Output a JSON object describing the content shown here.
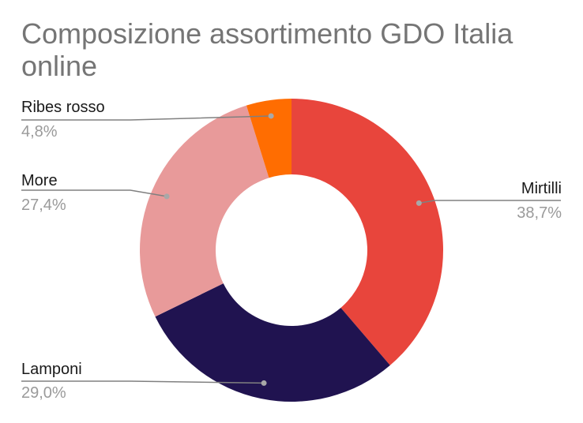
{
  "chart_data": {
    "type": "pie",
    "variant": "donut",
    "title": "Composizione assortimento GDO Italia online",
    "legend": "none",
    "slices": [
      {
        "name": "Mirtilli",
        "value": 38.7,
        "label": "38,7%",
        "color": "#e8453c"
      },
      {
        "name": "Lamponi",
        "value": 29.0,
        "label": "29,0%",
        "color": "#201350"
      },
      {
        "name": "More",
        "value": 27.4,
        "label": "27,4%",
        "color": "#e89a9a"
      },
      {
        "name": "Ribes rosso",
        "value": 4.8,
        "label": "4,8%",
        "color": "#ff6d01"
      }
    ]
  },
  "colors": {
    "title": "#757575",
    "leader": "#808080",
    "dot": "#a8a8a8"
  }
}
